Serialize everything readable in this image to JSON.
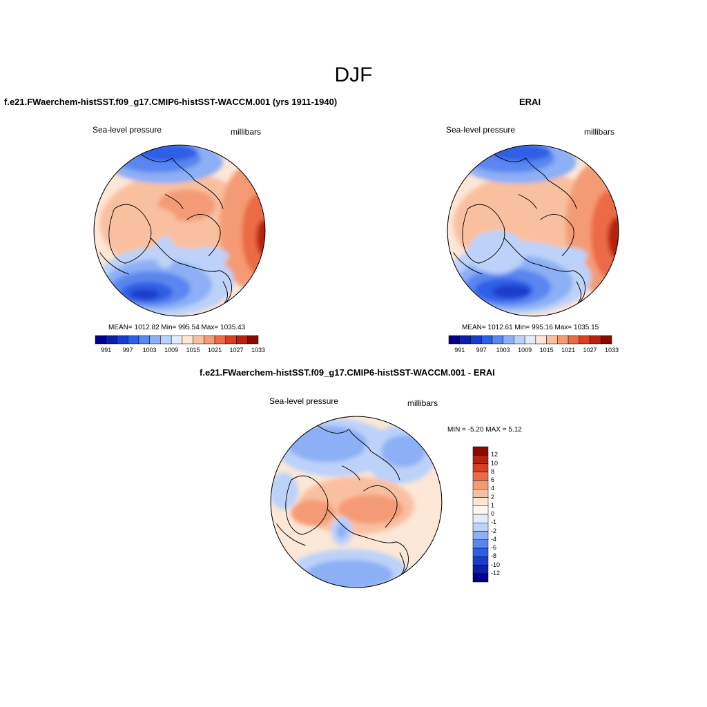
{
  "page": {
    "title": "DJF"
  },
  "panels": [
    {
      "id": "model",
      "title": "f.e21.FWaerchem-histSST.f09_g17.CMIP6-histSST-WACCM.001 (yrs 1911-1940)",
      "variable": "Sea-level pressure",
      "units": "millibars",
      "stats": "MEAN= 1012.82  Min= 995.54  Max= 1035.43",
      "colorbar_ticks": [
        "991",
        "997",
        "1003",
        "1009",
        "1015",
        "1021",
        "1027",
        "1033"
      ]
    },
    {
      "id": "obs",
      "title": "ERAI",
      "variable": "Sea-level pressure",
      "units": "millibars",
      "stats": "MEAN= 1012.61  Min= 995.16  Max= 1035.15",
      "colorbar_ticks": [
        "991",
        "997",
        "1003",
        "1009",
        "1015",
        "1021",
        "1027",
        "1033"
      ]
    },
    {
      "id": "diff",
      "title": "f.e21.FWaerchem-histSST.f09_g17.CMIP6-histSST-WACCM.001 - ERAI",
      "variable": "Sea-level pressure",
      "units": "millibars",
      "stats": "MIN =  -5.20 MAX =   5.12",
      "colorbar_ticks": [
        "12",
        "10",
        "8",
        "6",
        "4",
        "2",
        "1",
        "0",
        "-1",
        "-2",
        "-4",
        "-6",
        "-8",
        "-10",
        "-12"
      ]
    }
  ],
  "colors": {
    "abs_palette": [
      "#00008b",
      "#0b1fa8",
      "#1a3ccc",
      "#2d5ee6",
      "#5a86ef",
      "#8caff5",
      "#bcd2f9",
      "#e2ecfb",
      "#fde7d6",
      "#f9c0a0",
      "#f49b74",
      "#ec6a45",
      "#d84021",
      "#b8230f",
      "#8b0a00"
    ],
    "diff_palette": [
      "#8b0a00",
      "#b8230f",
      "#d84021",
      "#ec6a45",
      "#f49b74",
      "#f9c0a0",
      "#fde7d6",
      "#fff7ee",
      "#e2ecfb",
      "#bcd2f9",
      "#8caff5",
      "#5a86ef",
      "#2d5ee6",
      "#1a3ccc",
      "#0b1fa8",
      "#00008b"
    ]
  }
}
